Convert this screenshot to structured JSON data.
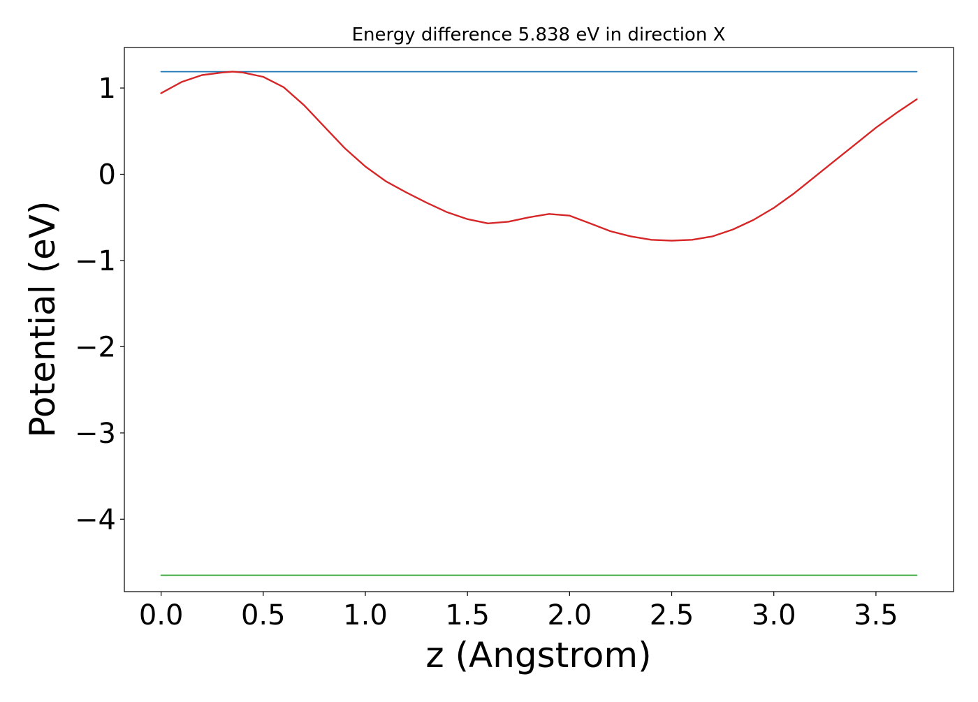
{
  "chart_data": {
    "type": "line",
    "title": "Energy difference 5.838 eV in direction X",
    "xlabel": "z (Angstrom)",
    "ylabel": "Potential (eV)",
    "xlim": [
      -0.18,
      3.88
    ],
    "ylim": [
      -4.84,
      1.47
    ],
    "x_ticks": [
      0.0,
      0.5,
      1.0,
      1.5,
      2.0,
      2.5,
      3.0,
      3.5
    ],
    "x_tick_labels": [
      "0.0",
      "0.5",
      "1.0",
      "1.5",
      "2.0",
      "2.5",
      "3.0",
      "3.5"
    ],
    "y_ticks": [
      1,
      0,
      -1,
      -2,
      -3,
      -4
    ],
    "y_tick_labels": [
      "1",
      "0",
      "−1",
      "−2",
      "−3",
      "−4"
    ],
    "grid": false,
    "legend": "none",
    "series": [
      {
        "color": "#d62728",
        "x": [
          0.0,
          0.1,
          0.2,
          0.3,
          0.35,
          0.4,
          0.5,
          0.6,
          0.7,
          0.8,
          0.9,
          1.0,
          1.1,
          1.2,
          1.3,
          1.4,
          1.5,
          1.6,
          1.7,
          1.8,
          1.9,
          2.0,
          2.1,
          2.2,
          2.3,
          2.4,
          2.5,
          2.6,
          2.7,
          2.8,
          2.9,
          3.0,
          3.1,
          3.2,
          3.3,
          3.4,
          3.5,
          3.6,
          3.7
        ],
        "y": [
          0.94,
          1.07,
          1.15,
          1.18,
          1.19,
          1.18,
          1.13,
          1.01,
          0.8,
          0.55,
          0.3,
          0.09,
          -0.08,
          -0.21,
          -0.33,
          -0.44,
          -0.52,
          -0.57,
          -0.55,
          -0.5,
          -0.46,
          -0.48,
          -0.57,
          -0.66,
          -0.72,
          -0.76,
          -0.77,
          -0.76,
          -0.72,
          -0.64,
          -0.53,
          -0.39,
          -0.22,
          -0.03,
          0.16,
          0.35,
          0.54,
          0.71,
          0.87
        ]
      },
      {
        "color": "#1f77b4",
        "x": [
          0.0,
          3.7
        ],
        "y": [
          1.19,
          1.19
        ]
      },
      {
        "color": "#2ca02c",
        "x": [
          0.0,
          3.7
        ],
        "y": [
          -4.65,
          -4.65
        ]
      }
    ]
  }
}
